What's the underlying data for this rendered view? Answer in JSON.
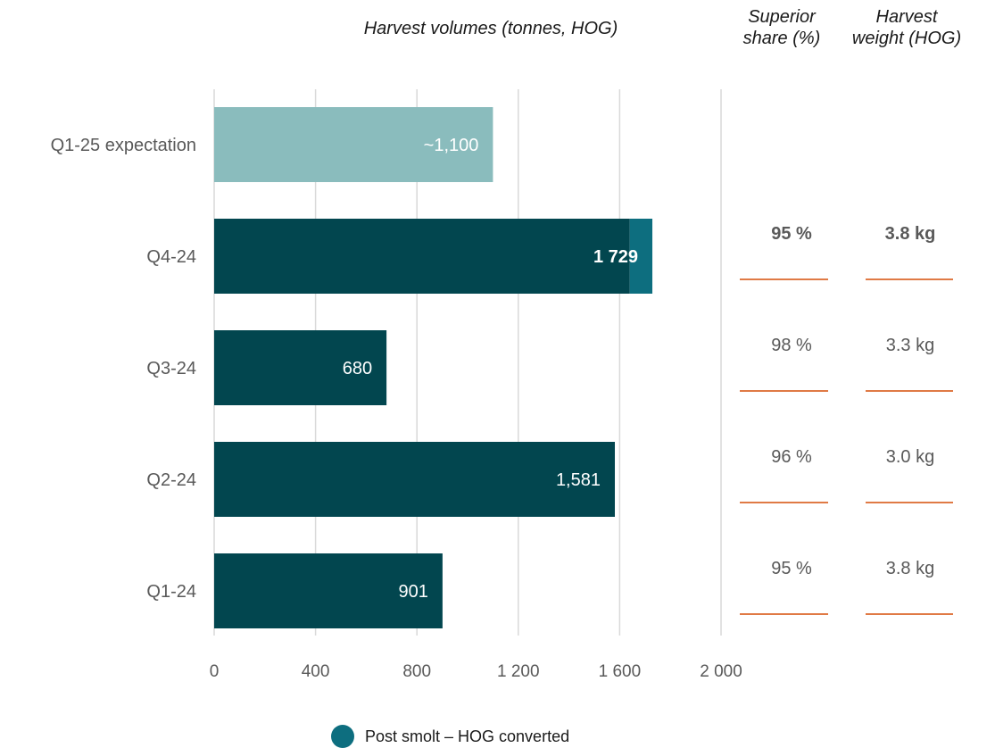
{
  "headers": {
    "volumes": "Harvest volumes (tonnes, HOG)",
    "superior_line1": "Superior",
    "superior_line2": "share (%)",
    "weight_line1": "Harvest",
    "weight_line2": "weight (HOG)"
  },
  "legend": {
    "label": "Post smolt – HOG converted",
    "color": "#0d6e7f"
  },
  "colors": {
    "bar": "#02464f",
    "expectation": "#8abcbd",
    "post_smolt": "#0d6e7f",
    "underline": "#e07a45",
    "grid": "#d9d9d9"
  },
  "chart_data": {
    "type": "bar",
    "orientation": "horizontal",
    "categories": [
      "Q1-25 expectation",
      "Q4-24",
      "Q3-24",
      "Q2-24",
      "Q1-24"
    ],
    "series": [
      {
        "values": [
          1100,
          1640,
          680,
          1581,
          901
        ]
      },
      {
        "name": "Post smolt – HOG converted",
        "values": [
          0,
          89,
          0,
          0,
          0
        ]
      }
    ],
    "value_labels": [
      "~1,100",
      "1 729",
      "680",
      "1,581",
      "901"
    ],
    "label_bold": [
      false,
      true,
      false,
      false,
      false
    ],
    "xlim": [
      0,
      2000
    ],
    "xticks": [
      0,
      400,
      800,
      1200,
      1600,
      2000
    ],
    "xtick_labels": [
      "0",
      "400",
      "800",
      "1 200",
      "1 600",
      "2 000"
    ],
    "grid": true,
    "legend_position": "bottom"
  },
  "table": {
    "rows": [
      {
        "category": "Q4-24",
        "superior": "95 %",
        "weight": "3.8 kg",
        "bold": true
      },
      {
        "category": "Q3-24",
        "superior": "98 %",
        "weight": "3.3 kg",
        "bold": false
      },
      {
        "category": "Q2-24",
        "superior": "96 %",
        "weight": "3.0 kg",
        "bold": false
      },
      {
        "category": "Q1-24",
        "superior": "95 %",
        "weight": "3.8 kg",
        "bold": false
      }
    ]
  }
}
